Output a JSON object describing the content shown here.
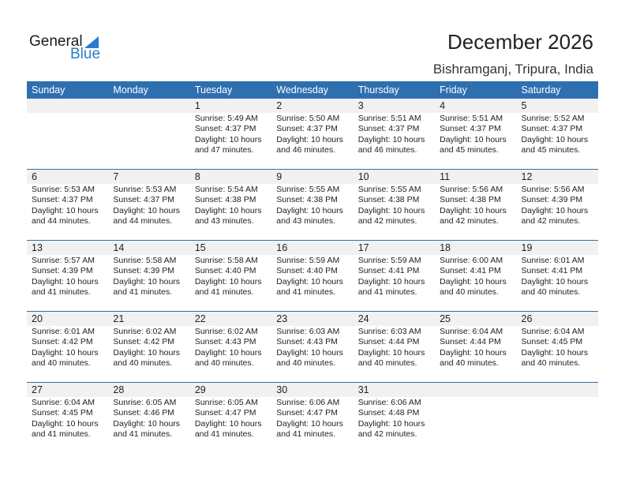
{
  "logo": {
    "general": "General",
    "blue": "Blue"
  },
  "title": "December 2026",
  "location": "Bishramganj, Tripura, India",
  "colors": {
    "header": "#2e6fb0",
    "date_strip": "#f1f1f1",
    "logo_blue": "#2a7cc7"
  },
  "days": [
    "Sunday",
    "Monday",
    "Tuesday",
    "Wednesday",
    "Thursday",
    "Friday",
    "Saturday"
  ],
  "weeks": [
    [
      null,
      null,
      {
        "day": "1",
        "sunrise": "Sunrise: 5:49 AM",
        "sunset": "Sunset: 4:37 PM",
        "daylight": "Daylight: 10 hours",
        "minutes": "and 47 minutes."
      },
      {
        "day": "2",
        "sunrise": "Sunrise: 5:50 AM",
        "sunset": "Sunset: 4:37 PM",
        "daylight": "Daylight: 10 hours",
        "minutes": "and 46 minutes."
      },
      {
        "day": "3",
        "sunrise": "Sunrise: 5:51 AM",
        "sunset": "Sunset: 4:37 PM",
        "daylight": "Daylight: 10 hours",
        "minutes": "and 46 minutes."
      },
      {
        "day": "4",
        "sunrise": "Sunrise: 5:51 AM",
        "sunset": "Sunset: 4:37 PM",
        "daylight": "Daylight: 10 hours",
        "minutes": "and 45 minutes."
      },
      {
        "day": "5",
        "sunrise": "Sunrise: 5:52 AM",
        "sunset": "Sunset: 4:37 PM",
        "daylight": "Daylight: 10 hours",
        "minutes": "and 45 minutes."
      }
    ],
    [
      {
        "day": "6",
        "sunrise": "Sunrise: 5:53 AM",
        "sunset": "Sunset: 4:37 PM",
        "daylight": "Daylight: 10 hours",
        "minutes": "and 44 minutes."
      },
      {
        "day": "7",
        "sunrise": "Sunrise: 5:53 AM",
        "sunset": "Sunset: 4:37 PM",
        "daylight": "Daylight: 10 hours",
        "minutes": "and 44 minutes."
      },
      {
        "day": "8",
        "sunrise": "Sunrise: 5:54 AM",
        "sunset": "Sunset: 4:38 PM",
        "daylight": "Daylight: 10 hours",
        "minutes": "and 43 minutes."
      },
      {
        "day": "9",
        "sunrise": "Sunrise: 5:55 AM",
        "sunset": "Sunset: 4:38 PM",
        "daylight": "Daylight: 10 hours",
        "minutes": "and 43 minutes."
      },
      {
        "day": "10",
        "sunrise": "Sunrise: 5:55 AM",
        "sunset": "Sunset: 4:38 PM",
        "daylight": "Daylight: 10 hours",
        "minutes": "and 42 minutes."
      },
      {
        "day": "11",
        "sunrise": "Sunrise: 5:56 AM",
        "sunset": "Sunset: 4:38 PM",
        "daylight": "Daylight: 10 hours",
        "minutes": "and 42 minutes."
      },
      {
        "day": "12",
        "sunrise": "Sunrise: 5:56 AM",
        "sunset": "Sunset: 4:39 PM",
        "daylight": "Daylight: 10 hours",
        "minutes": "and 42 minutes."
      }
    ],
    [
      {
        "day": "13",
        "sunrise": "Sunrise: 5:57 AM",
        "sunset": "Sunset: 4:39 PM",
        "daylight": "Daylight: 10 hours",
        "minutes": "and 41 minutes."
      },
      {
        "day": "14",
        "sunrise": "Sunrise: 5:58 AM",
        "sunset": "Sunset: 4:39 PM",
        "daylight": "Daylight: 10 hours",
        "minutes": "and 41 minutes."
      },
      {
        "day": "15",
        "sunrise": "Sunrise: 5:58 AM",
        "sunset": "Sunset: 4:40 PM",
        "daylight": "Daylight: 10 hours",
        "minutes": "and 41 minutes."
      },
      {
        "day": "16",
        "sunrise": "Sunrise: 5:59 AM",
        "sunset": "Sunset: 4:40 PM",
        "daylight": "Daylight: 10 hours",
        "minutes": "and 41 minutes."
      },
      {
        "day": "17",
        "sunrise": "Sunrise: 5:59 AM",
        "sunset": "Sunset: 4:41 PM",
        "daylight": "Daylight: 10 hours",
        "minutes": "and 41 minutes."
      },
      {
        "day": "18",
        "sunrise": "Sunrise: 6:00 AM",
        "sunset": "Sunset: 4:41 PM",
        "daylight": "Daylight: 10 hours",
        "minutes": "and 40 minutes."
      },
      {
        "day": "19",
        "sunrise": "Sunrise: 6:01 AM",
        "sunset": "Sunset: 4:41 PM",
        "daylight": "Daylight: 10 hours",
        "minutes": "and 40 minutes."
      }
    ],
    [
      {
        "day": "20",
        "sunrise": "Sunrise: 6:01 AM",
        "sunset": "Sunset: 4:42 PM",
        "daylight": "Daylight: 10 hours",
        "minutes": "and 40 minutes."
      },
      {
        "day": "21",
        "sunrise": "Sunrise: 6:02 AM",
        "sunset": "Sunset: 4:42 PM",
        "daylight": "Daylight: 10 hours",
        "minutes": "and 40 minutes."
      },
      {
        "day": "22",
        "sunrise": "Sunrise: 6:02 AM",
        "sunset": "Sunset: 4:43 PM",
        "daylight": "Daylight: 10 hours",
        "minutes": "and 40 minutes."
      },
      {
        "day": "23",
        "sunrise": "Sunrise: 6:03 AM",
        "sunset": "Sunset: 4:43 PM",
        "daylight": "Daylight: 10 hours",
        "minutes": "and 40 minutes."
      },
      {
        "day": "24",
        "sunrise": "Sunrise: 6:03 AM",
        "sunset": "Sunset: 4:44 PM",
        "daylight": "Daylight: 10 hours",
        "minutes": "and 40 minutes."
      },
      {
        "day": "25",
        "sunrise": "Sunrise: 6:04 AM",
        "sunset": "Sunset: 4:44 PM",
        "daylight": "Daylight: 10 hours",
        "minutes": "and 40 minutes."
      },
      {
        "day": "26",
        "sunrise": "Sunrise: 6:04 AM",
        "sunset": "Sunset: 4:45 PM",
        "daylight": "Daylight: 10 hours",
        "minutes": "and 40 minutes."
      }
    ],
    [
      {
        "day": "27",
        "sunrise": "Sunrise: 6:04 AM",
        "sunset": "Sunset: 4:45 PM",
        "daylight": "Daylight: 10 hours",
        "minutes": "and 41 minutes."
      },
      {
        "day": "28",
        "sunrise": "Sunrise: 6:05 AM",
        "sunset": "Sunset: 4:46 PM",
        "daylight": "Daylight: 10 hours",
        "minutes": "and 41 minutes."
      },
      {
        "day": "29",
        "sunrise": "Sunrise: 6:05 AM",
        "sunset": "Sunset: 4:47 PM",
        "daylight": "Daylight: 10 hours",
        "minutes": "and 41 minutes."
      },
      {
        "day": "30",
        "sunrise": "Sunrise: 6:06 AM",
        "sunset": "Sunset: 4:47 PM",
        "daylight": "Daylight: 10 hours",
        "minutes": "and 41 minutes."
      },
      {
        "day": "31",
        "sunrise": "Sunrise: 6:06 AM",
        "sunset": "Sunset: 4:48 PM",
        "daylight": "Daylight: 10 hours",
        "minutes": "and 42 minutes."
      },
      null,
      null
    ]
  ]
}
